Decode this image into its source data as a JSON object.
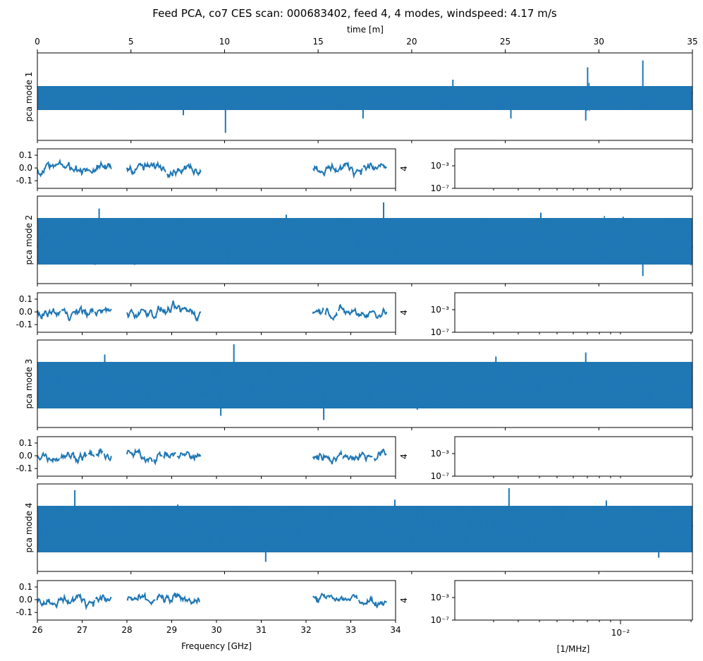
{
  "chart_data": {
    "type": "line",
    "title": "Feed PCA, co7 CES scan: 000683402, feed 4, 4 modes, windspeed: 4.17 m/s",
    "color": "#1f77b4",
    "time_axis": {
      "xlabel": "time [m]",
      "xlim": [
        0,
        35
      ],
      "ticks": [
        0,
        5,
        10,
        15,
        20,
        25,
        30,
        35
      ]
    },
    "freq_axis": {
      "xlabel": "Frequency [GHz]",
      "xlim": [
        26,
        34
      ],
      "ticks": [
        26,
        27,
        28,
        29,
        30,
        31,
        32,
        33,
        34
      ],
      "bands": [
        [
          26.0,
          27.65
        ],
        [
          28.0,
          29.65
        ],
        [
          32.15,
          33.8
        ]
      ]
    },
    "psd_axis": {
      "xlabel": "[1/MHz]",
      "xtick_label": "10⁻²",
      "ytick_labels": [
        "10⁻³",
        "10⁻⁷"
      ],
      "side_label": "4"
    },
    "modes": [
      {
        "ylabel": "pca mode 1",
        "spikes": [
          [
            10.05,
            -0.85
          ],
          [
            29.4,
            0.75
          ],
          [
            32.35,
            0.92
          ],
          [
            29.3,
            -0.55
          ],
          [
            25.3,
            -0.5
          ],
          [
            17.4,
            -0.5
          ],
          [
            22.2,
            0.45
          ],
          [
            7.8,
            -0.42
          ]
        ],
        "freq_ylabels": [
          "0.1",
          "0.0",
          "-0.1"
        ],
        "freq_yticks": [
          0.1,
          0.0,
          -0.1
        ],
        "freq_ylim": [
          -0.16,
          0.15
        ]
      },
      {
        "ylabel": "pca mode 2",
        "spikes": [
          [
            18.5,
            0.95
          ],
          [
            32.35,
            -0.85
          ],
          [
            3.3,
            0.8
          ],
          [
            13.3,
            0.65
          ],
          [
            26.9,
            0.7
          ],
          [
            10.2,
            -0.55
          ],
          [
            31.3,
            0.6
          ]
        ],
        "freq_ylabels": [
          "0.1",
          "0.0",
          "-0.1"
        ],
        "freq_yticks": [
          0.1,
          0.0,
          -0.1
        ],
        "freq_ylim": [
          -0.16,
          0.15
        ]
      },
      {
        "ylabel": "pca mode 3",
        "spikes": [
          [
            10.5,
            1.0
          ],
          [
            15.3,
            -0.85
          ],
          [
            29.3,
            0.8
          ],
          [
            3.6,
            0.75
          ],
          [
            9.8,
            -0.75
          ],
          [
            24.5,
            0.7
          ],
          [
            20.3,
            -0.6
          ]
        ],
        "freq_ylabels": [
          "0.1",
          "0.0",
          "-0.1"
        ],
        "freq_yticks": [
          0.1,
          0.0,
          -0.1
        ],
        "freq_ylim": [
          -0.16,
          0.15
        ]
      },
      {
        "ylabel": "pca mode 4",
        "spikes": [
          [
            25.2,
            1.0
          ],
          [
            2.0,
            0.95
          ],
          [
            12.2,
            -0.8
          ],
          [
            30.4,
            0.7
          ],
          [
            19.1,
            0.72
          ],
          [
            33.2,
            -0.7
          ],
          [
            7.5,
            0.6
          ]
        ],
        "freq_ylabels": [
          "0.1",
          "0.0",
          "-0.1"
        ],
        "freq_yticks": [
          0.1,
          0.0,
          -0.1
        ],
        "freq_ylim": [
          -0.16,
          0.15
        ]
      }
    ]
  }
}
